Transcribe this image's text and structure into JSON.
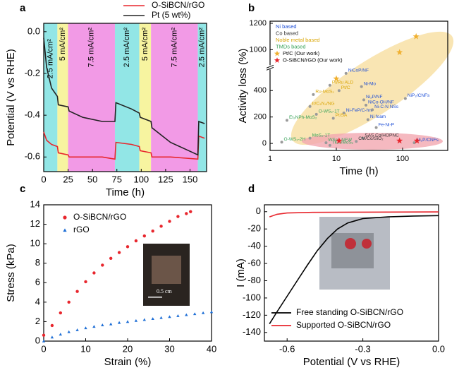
{
  "chart_data": [
    {
      "panel": "a",
      "type": "line",
      "xlabel": "Time (h)",
      "ylabel": "Potential (V vs RHE)",
      "xlim": [
        0,
        167
      ],
      "ylim": [
        -0.67,
        0.04
      ],
      "xticks": [
        0,
        25,
        50,
        75,
        100,
        125,
        150
      ],
      "yticks": [
        {
          "value": 0,
          "label": "0.0"
        },
        -0.2,
        -0.4,
        -0.6
      ],
      "legend": "top",
      "regions": [
        {
          "x": [
            0,
            14
          ],
          "color": "#92e6e6",
          "label": "2.5 mA/cm²"
        },
        {
          "x": [
            14,
            25
          ],
          "color": "#f7f4a0",
          "label": "5 mA/cm²"
        },
        {
          "x": [
            25,
            73
          ],
          "color": "#f29ae6",
          "label": "7.5 mA/cm²"
        },
        {
          "x": [
            73,
            98
          ],
          "color": "#92e6e6",
          "label": "2.5 mA/cm²"
        },
        {
          "x": [
            98,
            110
          ],
          "color": "#f7f4a0",
          "label": "5 mA/cm²"
        },
        {
          "x": [
            110,
            158
          ],
          "color": "#f29ae6",
          "label": "7.5 mA/cm²"
        },
        {
          "x": [
            158,
            167
          ],
          "color": "#92e6e6",
          "label": "2.5 mA/cm²"
        }
      ],
      "series": [
        {
          "name": "O-SiBCN/rGO",
          "color": "#e8262d",
          "x": [
            0,
            3,
            8,
            14,
            15,
            25,
            26,
            40,
            60,
            73,
            74,
            90,
            98,
            99,
            110,
            111,
            130,
            158,
            159,
            165
          ],
          "values": [
            -0.48,
            -0.52,
            -0.54,
            -0.55,
            -0.58,
            -0.59,
            -0.6,
            -0.6,
            -0.6,
            -0.61,
            -0.53,
            -0.54,
            -0.55,
            -0.57,
            -0.58,
            -0.6,
            -0.6,
            -0.61,
            -0.5,
            -0.51
          ]
        },
        {
          "name": "Pt (5 wt%)",
          "color": "#222222",
          "x": [
            0,
            3,
            8,
            14,
            15,
            25,
            26,
            40,
            60,
            73,
            74,
            90,
            98,
            99,
            110,
            111,
            130,
            158,
            159,
            165
          ],
          "values": [
            -0.03,
            -0.17,
            -0.27,
            -0.31,
            -0.35,
            -0.36,
            -0.38,
            -0.41,
            -0.43,
            -0.43,
            -0.34,
            -0.37,
            -0.39,
            -0.41,
            -0.43,
            -0.46,
            -0.53,
            -0.59,
            -0.43,
            -0.44
          ]
        }
      ]
    },
    {
      "panel": "b",
      "type": "scatter",
      "xlabel": "Time (h)",
      "ylabel": "Activity loss (%)",
      "xscale": "log",
      "xlim": [
        1,
        480
      ],
      "ylim": [
        -53,
        1216
      ],
      "ybreak": [
        576,
        867
      ],
      "xticks": [
        1,
        10,
        100
      ],
      "yticks": [
        0,
        200,
        400,
        1000,
        1200
      ],
      "legend": "upper left",
      "series": [
        {
          "name": "Ni based",
          "color": "#1f4fd6",
          "marker": "circle",
          "labels": [
            "NiCoP/NF",
            "Ni-Mo",
            "Ni₂P/NF",
            "NiCo-OH/NF",
            "Ni-FeP/C-hnr",
            "Ni-C-N NSs",
            "Ni foam",
            "Fe-Ni-P",
            "NiP₂/CNFs",
            "Ni₂P/CNFs"
          ],
          "x": [
            14,
            24,
            26,
            28,
            13,
            35,
            30,
            40,
            110,
            150
          ],
          "values": [
            530,
            430,
            330,
            290,
            230,
            255,
            180,
            120,
            340,
            5
          ]
        },
        {
          "name": "Co based",
          "color": "#333333",
          "marker": "circle",
          "labels": [
            "SAS Co/HOPNC",
            "CM/Co/SiO₂"
          ],
          "x": [
            25,
            20
          ],
          "values": [
            40,
            15
          ]
        },
        {
          "name": "Noble metal based",
          "color": "#d9a400",
          "marker": "circle",
          "labels": [
            "Pt/Ru ALD",
            "Ru-MoS₂",
            "Pt/C",
            "Ir/C₃N₄/NG",
            "Pt/SA"
          ],
          "x": [
            8,
            4.5,
            11,
            4,
            9
          ],
          "values": [
            440,
            370,
            400,
            280,
            190
          ]
        },
        {
          "name": "TMDs based",
          "color": "#3aa35a",
          "marker": "circle",
          "labels": [
            "O-WS₂-1T",
            "Et₂NPh-MoS₂",
            "MoS₂-1T",
            "O-WS₂-2H",
            "WSe₂-NFW",
            "TiO₂/MoS₂"
          ],
          "x": [
            5,
            1.8,
            4,
            1.5,
            7,
            8
          ],
          "values": [
            220,
            175,
            40,
            10,
            5,
            -15
          ]
        },
        {
          "name": "Pt/C (Our work)",
          "color": "#f0b030",
          "marker": "star",
          "x": [
            10,
            90,
            160
          ],
          "values": [
            490,
            980,
            1100
          ]
        },
        {
          "name": "O-SiBCN/rGO (Our work)",
          "color": "#e8262d",
          "marker": "star",
          "x": [
            11,
            90,
            165
          ],
          "values": [
            20,
            20,
            20
          ]
        }
      ]
    },
    {
      "panel": "c",
      "type": "scatter",
      "xlabel": "Strain (%)",
      "ylabel": "Stress (kPa)",
      "xlim": [
        0,
        40
      ],
      "ylim": [
        0,
        14
      ],
      "xticks": [
        0,
        10,
        20,
        30,
        40
      ],
      "yticks": [
        0,
        2,
        4,
        6,
        8,
        10,
        12,
        14
      ],
      "legend": "upper left",
      "inset_label": "0.5 cm",
      "series": [
        {
          "name": "O-SiBCN/rGO",
          "color": "#e8262d",
          "marker": "circle",
          "x": [
            0,
            2,
            4,
            6,
            8,
            10,
            12,
            14,
            16,
            18,
            20,
            22,
            24,
            26,
            28,
            30,
            32,
            34,
            35
          ],
          "values": [
            0.6,
            1.6,
            2.9,
            4.0,
            5.1,
            6.1,
            7.0,
            7.8,
            8.5,
            9.1,
            9.7,
            10.3,
            10.8,
            11.3,
            11.8,
            12.3,
            12.8,
            13.1,
            13.3
          ]
        },
        {
          "name": "rGO",
          "color": "#1f6fd6",
          "marker": "triangle",
          "x": [
            0,
            2,
            4,
            6,
            8,
            10,
            12,
            14,
            16,
            18,
            20,
            22,
            24,
            26,
            28,
            30,
            32,
            34,
            36,
            38,
            40
          ],
          "values": [
            0,
            0.4,
            0.7,
            0.95,
            1.15,
            1.35,
            1.5,
            1.65,
            1.75,
            1.9,
            2.0,
            2.1,
            2.2,
            2.3,
            2.4,
            2.5,
            2.6,
            2.7,
            2.8,
            2.9,
            3.0
          ]
        }
      ]
    },
    {
      "panel": "d",
      "type": "line",
      "xlabel": "Potential (V vs RHE)",
      "ylabel": "I (mA)",
      "xlim": [
        -0.69,
        0
      ],
      "ylim": [
        -150,
        8
      ],
      "xticks": [
        -0.6,
        -0.3,
        {
          "value": 0,
          "label": "0.0"
        }
      ],
      "yticks": [
        0,
        -20,
        -40,
        -60,
        -80,
        -100,
        -120,
        -140
      ],
      "legend": "lower right",
      "series": [
        {
          "name": "Free standing O-SiBCN/rGO",
          "color": "#000000",
          "x": [
            -0.67,
            -0.64,
            -0.6,
            -0.56,
            -0.52,
            -0.48,
            -0.44,
            -0.4,
            -0.36,
            -0.3,
            -0.2,
            -0.1,
            0
          ],
          "values": [
            -130,
            -116,
            -98,
            -80,
            -62,
            -45,
            -31,
            -20,
            -13,
            -8,
            -6,
            -5,
            -4.5
          ]
        },
        {
          "name": "Supported O-SiBCN/rGO",
          "color": "#e8262d",
          "x": [
            -0.67,
            -0.64,
            -0.6,
            -0.5,
            -0.3,
            0
          ],
          "values": [
            -6,
            -3,
            -1.5,
            -0.8,
            -0.5,
            -0.3
          ]
        }
      ]
    }
  ]
}
